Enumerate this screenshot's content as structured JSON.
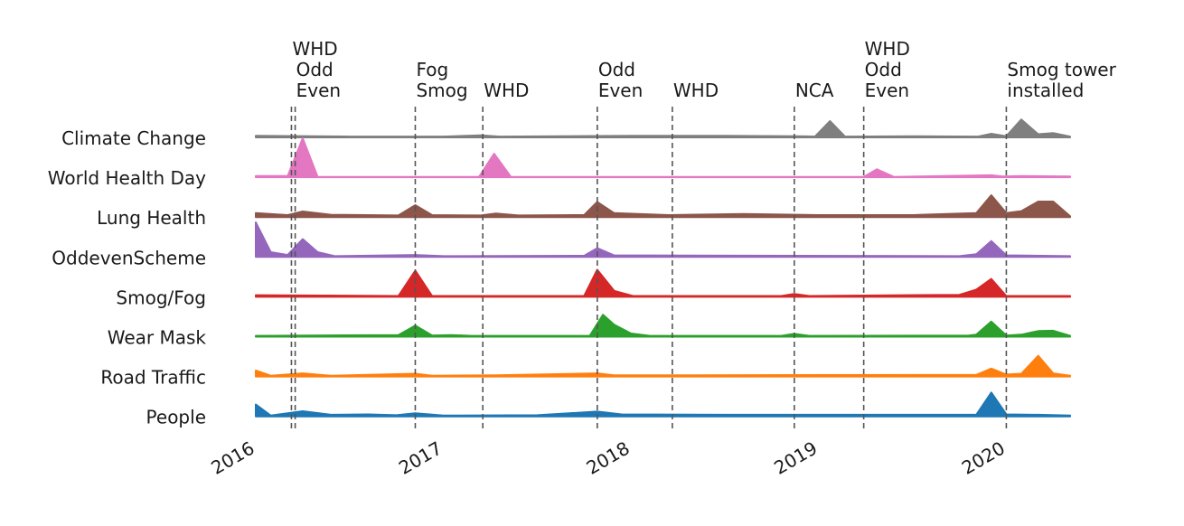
{
  "chart_data": {
    "type": "ridgeline",
    "xlim": [
      2016,
      2020.34
    ],
    "xticks": [
      2016,
      2017,
      2018,
      2019,
      2020
    ],
    "series": [
      {
        "name": "Climate Change",
        "color": "#7f7f7f",
        "x": [
          2016,
          2016.5,
          2017,
          2017.2,
          2017.3,
          2018,
          2018.5,
          2018.9,
          2018.98,
          2019.06,
          2019.14,
          2019.5,
          2019.85,
          2019.92,
          2020.0,
          2020.08,
          2020.17,
          2020.25,
          2020.34
        ],
        "values": [
          0.04,
          0.02,
          0.02,
          0.05,
          0.02,
          0.04,
          0.04,
          0.03,
          0.02,
          0.41,
          0.02,
          0.03,
          0.02,
          0.09,
          0.03,
          0.45,
          0.08,
          0.11,
          0.02
        ]
      },
      {
        "name": "World Health Day",
        "color": "#e377c2",
        "x": [
          2016,
          2016.17,
          2016.25,
          2016.33,
          2017.19,
          2017.27,
          2017.36,
          2019.24,
          2019.31,
          2019.4,
          2019.92,
          2019.98,
          2020.08,
          2020.34
        ],
        "values": [
          0.03,
          0.03,
          0.98,
          0.01,
          0.01,
          0.59,
          0.01,
          0.01,
          0.2,
          0.01,
          0.05,
          0.02,
          0.03,
          0.02
        ]
      },
      {
        "name": "Lung Health",
        "color": "#8c564b",
        "x": [
          2016,
          2016.17,
          2016.25,
          2016.4,
          2016.76,
          2016.85,
          2016.94,
          2017.2,
          2017.28,
          2017.4,
          2017.75,
          2017.82,
          2017.91,
          2018.2,
          2018.6,
          2019.0,
          2019.5,
          2019.84,
          2019.92,
          2020.0,
          2020.08,
          2020.17,
          2020.25,
          2020.34
        ],
        "values": [
          0.1,
          0.05,
          0.14,
          0.06,
          0.04,
          0.3,
          0.05,
          0.04,
          0.09,
          0.04,
          0.05,
          0.38,
          0.1,
          0.05,
          0.08,
          0.05,
          0.05,
          0.1,
          0.55,
          0.1,
          0.15,
          0.39,
          0.39,
          0.02
        ]
      },
      {
        "name": "OddevenScheme",
        "color": "#9467bd",
        "x": [
          2016,
          2016.08,
          2016.17,
          2016.25,
          2016.33,
          2016.42,
          2016.85,
          2017.0,
          2017.75,
          2017.82,
          2017.91,
          2019.75,
          2019.84,
          2019.92,
          2020.0,
          2020.34
        ],
        "values": [
          0.87,
          0.12,
          0.05,
          0.45,
          0.12,
          0.02,
          0.05,
          0.02,
          0.03,
          0.22,
          0.04,
          0.02,
          0.07,
          0.4,
          0.04,
          0.02
        ]
      },
      {
        "name": "Smog/Fog",
        "color": "#d62728",
        "x": [
          2016,
          2016.76,
          2016.85,
          2016.94,
          2017.75,
          2017.82,
          2017.91,
          2018.01,
          2018.8,
          2018.87,
          2018.95,
          2019.75,
          2019.84,
          2019.92,
          2020.0,
          2020.34
        ],
        "values": [
          0.04,
          0.02,
          0.66,
          0.02,
          0.02,
          0.68,
          0.15,
          0.02,
          0.02,
          0.07,
          0.02,
          0.05,
          0.18,
          0.45,
          0.02,
          0.02
        ]
      },
      {
        "name": "Wear Mask",
        "color": "#2ca02c",
        "x": [
          2016,
          2016.76,
          2016.85,
          2016.94,
          2017.04,
          2017.15,
          2017.78,
          2017.85,
          2017.91,
          2018.0,
          2018.1,
          2018.8,
          2018.87,
          2018.95,
          2019.8,
          2019.84,
          2019.92,
          2020.0,
          2020.08,
          2020.17,
          2020.25,
          2020.34
        ],
        "values": [
          0.02,
          0.04,
          0.28,
          0.03,
          0.04,
          0.02,
          0.02,
          0.55,
          0.3,
          0.08,
          0.02,
          0.02,
          0.07,
          0.02,
          0.03,
          0.05,
          0.38,
          0.03,
          0.05,
          0.14,
          0.15,
          0.02
        ]
      },
      {
        "name": "Road Traffic",
        "color": "#ff7f0e",
        "x": [
          2016,
          2016.08,
          2016.25,
          2016.4,
          2016.85,
          2016.94,
          2017.28,
          2017.82,
          2017.91,
          2019.84,
          2019.92,
          2020.0,
          2020.08,
          2020.17,
          2020.25,
          2020.34
        ],
        "values": [
          0.15,
          0.02,
          0.08,
          0.02,
          0.07,
          0.02,
          0.03,
          0.08,
          0.03,
          0.04,
          0.2,
          0.05,
          0.07,
          0.52,
          0.08,
          0.02
        ]
      },
      {
        "name": "People",
        "color": "#1f77b4",
        "x": [
          2016,
          2016.08,
          2016.25,
          2016.4,
          2016.6,
          2016.75,
          2016.85,
          2017.0,
          2017.5,
          2017.82,
          2017.95,
          2018.5,
          2019.84,
          2019.92,
          2020.0,
          2020.17,
          2020.34
        ],
        "values": [
          0.3,
          0.02,
          0.13,
          0.04,
          0.05,
          0.03,
          0.08,
          0.02,
          0.03,
          0.12,
          0.05,
          0.04,
          0.04,
          0.6,
          0.05,
          0.04,
          0.02
        ]
      }
    ],
    "annotations": [
      {
        "x": 2016.19,
        "lines": [
          "WHD"
        ]
      },
      {
        "x": 2016.21,
        "lines": [
          "Odd",
          "Even"
        ]
      },
      {
        "x": 2016.85,
        "lines": [
          "Fog",
          "Smog"
        ]
      },
      {
        "x": 2017.21,
        "lines": [
          "WHD"
        ]
      },
      {
        "x": 2017.82,
        "lines": [
          "Odd",
          "Even"
        ]
      },
      {
        "x": 2018.22,
        "lines": [
          "WHD"
        ]
      },
      {
        "x": 2018.87,
        "lines": [
          "NCA"
        ]
      },
      {
        "x": 2019.24,
        "lines": [
          "WHD",
          "Odd",
          "Even"
        ]
      },
      {
        "x": 2020.0,
        "lines": [
          "Smog tower",
          "installed"
        ]
      }
    ]
  }
}
